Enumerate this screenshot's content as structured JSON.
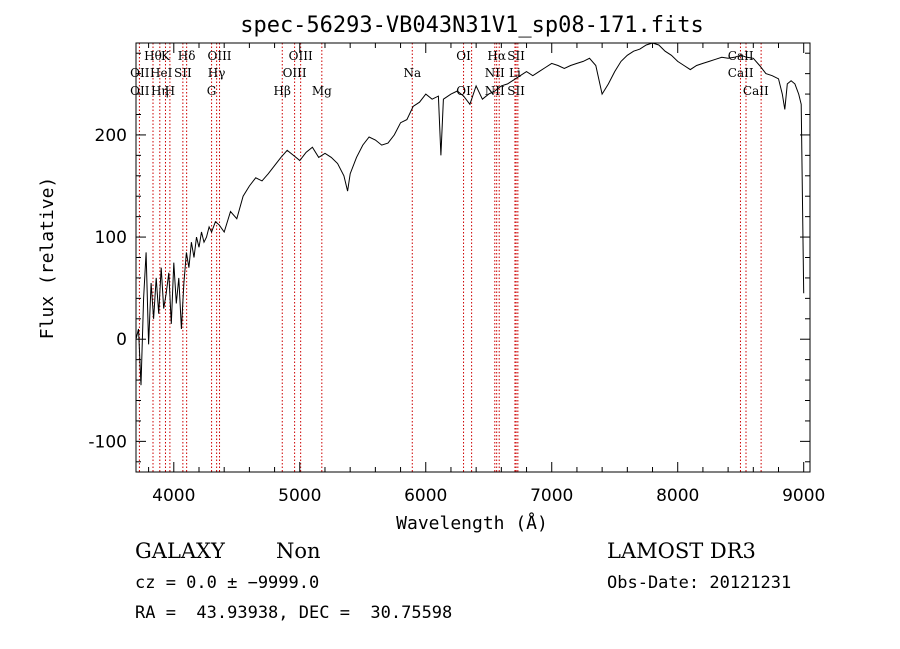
{
  "chart_data": {
    "type": "line",
    "title": "spec-56293-VB043N31V1_sp08-171.fits",
    "xlabel": "Wavelength (Å)",
    "ylabel": "Flux (relative)",
    "xlim": [
      3700,
      9050
    ],
    "ylim": [
      -130,
      290
    ],
    "xticks": [
      4000,
      5000,
      6000,
      7000,
      8000,
      9000
    ],
    "yticks": [
      -100,
      0,
      100,
      200
    ],
    "grid": false,
    "line_color": "#000000",
    "marker_color": "#cc0000",
    "series": [
      {
        "x": [
          3700,
          3720,
          3740,
          3760,
          3780,
          3800,
          3820,
          3840,
          3860,
          3880,
          3900,
          3920,
          3940,
          3960,
          3980,
          4000,
          4020,
          4040,
          4060,
          4080,
          4100,
          4120,
          4140,
          4160,
          4180,
          4200,
          4220,
          4240,
          4260,
          4280,
          4300,
          4330,
          4360,
          4400,
          4450,
          4500,
          4550,
          4600,
          4650,
          4700,
          4750,
          4800,
          4850,
          4900,
          4950,
          5000,
          5050,
          5100,
          5150,
          5200,
          5250,
          5300,
          5350,
          5380,
          5400,
          5450,
          5500,
          5550,
          5600,
          5650,
          5700,
          5750,
          5800,
          5850,
          5900,
          5950,
          6000,
          6050,
          6100,
          6120,
          6140,
          6200,
          6250,
          6300,
          6350,
          6400,
          6450,
          6500,
          6550,
          6600,
          6650,
          6700,
          6750,
          6800,
          6850,
          6900,
          6950,
          7000,
          7050,
          7100,
          7150,
          7200,
          7250,
          7300,
          7350,
          7400,
          7450,
          7500,
          7550,
          7600,
          7650,
          7700,
          7750,
          7800,
          7850,
          7900,
          7950,
          8000,
          8050,
          8100,
          8150,
          8200,
          8250,
          8300,
          8350,
          8400,
          8450,
          8500,
          8550,
          8600,
          8650,
          8700,
          8750,
          8800,
          8830,
          8850,
          8870,
          8900,
          8930,
          8960,
          8980,
          9000
        ],
        "y": [
          0,
          10,
          -45,
          40,
          85,
          -5,
          55,
          20,
          60,
          25,
          70,
          30,
          45,
          65,
          15,
          75,
          35,
          60,
          10,
          55,
          85,
          70,
          95,
          80,
          100,
          90,
          105,
          95,
          100,
          110,
          105,
          115,
          112,
          105,
          125,
          118,
          140,
          150,
          158,
          155,
          162,
          170,
          178,
          185,
          180,
          175,
          183,
          188,
          178,
          182,
          178,
          172,
          160,
          145,
          162,
          178,
          190,
          198,
          195,
          190,
          192,
          200,
          212,
          215,
          228,
          232,
          240,
          235,
          238,
          180,
          235,
          240,
          243,
          238,
          230,
          248,
          235,
          240,
          243,
          248,
          250,
          254,
          258,
          262,
          258,
          262,
          266,
          270,
          268,
          265,
          268,
          270,
          272,
          275,
          268,
          240,
          250,
          262,
          272,
          278,
          282,
          284,
          288,
          290,
          288,
          282,
          278,
          272,
          268,
          264,
          268,
          270,
          272,
          274,
          276,
          275,
          276,
          278,
          276,
          275,
          268,
          260,
          258,
          255,
          240,
          225,
          250,
          253,
          250,
          240,
          230,
          45
        ]
      }
    ],
    "line_labels": [
      {
        "x": 3730,
        "row": 1,
        "text": "OII"
      },
      {
        "x": 3730,
        "row": 2,
        "text": "OII"
      },
      {
        "x": 3835,
        "row": 0,
        "text": "Hθ"
      },
      {
        "x": 3889,
        "row": 2,
        "text": "Hη"
      },
      {
        "x": 3900,
        "row": 1,
        "text": "HeI"
      },
      {
        "x": 3934,
        "row": 0,
        "text": "K"
      },
      {
        "x": 3969,
        "row": 2,
        "text": "H"
      },
      {
        "x": 4072,
        "row": 1,
        "text": "SII"
      },
      {
        "x": 4102,
        "row": 0,
        "text": "Hδ"
      },
      {
        "x": 4300,
        "row": 2,
        "text": "G"
      },
      {
        "x": 4340,
        "row": 1,
        "text": "Hγ"
      },
      {
        "x": 4363,
        "row": 0,
        "text": "OIII"
      },
      {
        "x": 4861,
        "row": 2,
        "text": "Hβ"
      },
      {
        "x": 4959,
        "row": 1,
        "text": "OIII"
      },
      {
        "x": 5007,
        "row": 0,
        "text": "OIII"
      },
      {
        "x": 5175,
        "row": 2,
        "text": "Mg"
      },
      {
        "x": 5893,
        "row": 1,
        "text": "Na"
      },
      {
        "x": 6300,
        "row": 0,
        "text": "OI"
      },
      {
        "x": 6300,
        "row": 2,
        "text": "OI"
      },
      {
        "x": 6548,
        "row": 1,
        "text": "NII"
      },
      {
        "x": 6548,
        "row": 2,
        "text": "NII"
      },
      {
        "x": 6563,
        "row": 0,
        "text": "Hα"
      },
      {
        "x": 6717,
        "row": 0,
        "text": "SII"
      },
      {
        "x": 6708,
        "row": 1,
        "text": "Li"
      },
      {
        "x": 6717,
        "row": 2,
        "text": "SII"
      },
      {
        "x": 8500,
        "row": 0,
        "text": "CaII"
      },
      {
        "x": 8500,
        "row": 1,
        "text": "CaII"
      },
      {
        "x": 8620,
        "row": 2,
        "text": "CaII"
      }
    ],
    "marker_lines": [
      3727,
      3835,
      3889,
      3934,
      3969,
      4072,
      4102,
      4300,
      4340,
      4363,
      4861,
      4959,
      5007,
      5175,
      5893,
      6300,
      6364,
      6548,
      6563,
      6583,
      6708,
      6717,
      6731,
      8498,
      8542,
      8662
    ]
  },
  "footer": {
    "object_class": "GALAXY",
    "subclass": "Non",
    "survey": "LAMOST DR3",
    "cz_line": "cz = 0.0 ± −9999.0",
    "obs_date": "Obs-Date: 20121231",
    "coords": "RA =  43.93938, DEC =  30.75598"
  }
}
